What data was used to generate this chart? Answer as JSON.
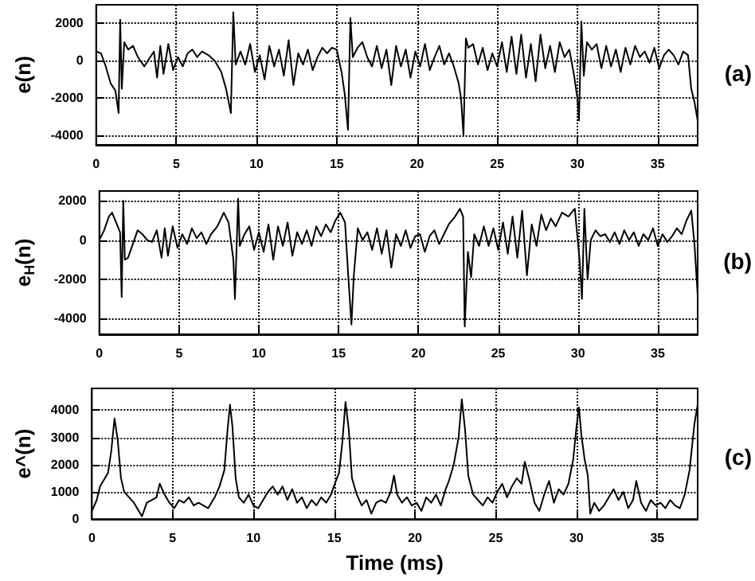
{
  "chart_data": [
    {
      "type": "line",
      "ylabel": "e(n)",
      "annotations": [
        "(a)"
      ],
      "color": "#000000",
      "xlim": [
        0,
        37.5
      ],
      "xticks": [
        0,
        5,
        10,
        15,
        20,
        25,
        30,
        35
      ],
      "ylim": [
        -4500,
        3000
      ],
      "yticks": [
        -4000,
        -2000,
        0,
        2000
      ],
      "grid": true,
      "x": [
        0,
        0.3,
        0.6,
        0.9,
        1.2,
        1.4,
        1.5,
        1.6,
        1.75,
        2.0,
        2.3,
        2.6,
        3.0,
        3.3,
        3.6,
        3.8,
        4.0,
        4.2,
        4.5,
        4.8,
        5.1,
        5.4,
        5.7,
        6.0,
        6.3,
        6.6,
        7.0,
        7.4,
        7.8,
        8.1,
        8.4,
        8.55,
        8.7,
        9.0,
        9.3,
        9.6,
        9.9,
        10.2,
        10.5,
        10.8,
        11.1,
        11.4,
        11.7,
        12.0,
        12.3,
        12.6,
        12.9,
        13.2,
        13.5,
        13.8,
        14.1,
        14.4,
        14.7,
        15.0,
        15.3,
        15.5,
        15.7,
        15.85,
        16.0,
        16.3,
        16.6,
        16.9,
        17.2,
        17.5,
        17.8,
        18.1,
        18.4,
        18.7,
        19.0,
        19.3,
        19.6,
        19.9,
        20.2,
        20.5,
        20.8,
        21.1,
        21.4,
        21.7,
        22.0,
        22.3,
        22.6,
        22.75,
        22.9,
        23.05,
        23.2,
        23.5,
        23.8,
        24.1,
        24.4,
        24.7,
        25.0,
        25.3,
        25.6,
        25.9,
        26.2,
        26.5,
        26.8,
        27.1,
        27.4,
        27.7,
        28.0,
        28.3,
        28.6,
        28.9,
        29.2,
        29.5,
        29.8,
        30.0,
        30.1,
        30.25,
        30.4,
        30.6,
        30.9,
        31.2,
        31.5,
        31.8,
        32.1,
        32.4,
        32.7,
        33.0,
        33.3,
        33.6,
        33.9,
        34.2,
        34.5,
        34.8,
        35.1,
        35.4,
        35.7,
        36.0,
        36.3,
        36.6,
        36.9,
        37.1,
        37.3,
        37.5
      ],
      "values": [
        500,
        400,
        -300,
        -1200,
        -1600,
        -2800,
        2200,
        -1500,
        1000,
        600,
        800,
        200,
        -300,
        100,
        500,
        -900,
        800,
        -700,
        900,
        -500,
        200,
        -300,
        400,
        600,
        200,
        500,
        300,
        0,
        -600,
        -1500,
        -2800,
        2600,
        -200,
        500,
        -200,
        900,
        -600,
        300,
        -1000,
        800,
        -300,
        600,
        -800,
        1100,
        -1300,
        400,
        -200,
        600,
        -500,
        200,
        700,
        400,
        700,
        600,
        -600,
        -1800,
        -3700,
        2300,
        200,
        700,
        1000,
        200,
        -300,
        800,
        -400,
        600,
        -1300,
        800,
        -300,
        600,
        -900,
        500,
        -300,
        900,
        -500,
        200,
        800,
        -200,
        400,
        -300,
        -1200,
        -2000,
        -4000,
        1200,
        700,
        900,
        -200,
        700,
        -500,
        400,
        -300,
        1000,
        -600,
        1300,
        -700,
        1400,
        -900,
        900,
        -1100,
        1400,
        -400,
        800,
        -600,
        1000,
        200,
        600,
        -800,
        -2000,
        -3200,
        2100,
        -800,
        1000,
        600,
        900,
        -400,
        800,
        -300,
        600,
        -600,
        700,
        -200,
        800,
        200,
        500,
        -100,
        700,
        -400,
        300,
        600,
        300,
        -200,
        500,
        300,
        -1500,
        -2200,
        -3200
      ]
    },
    {
      "type": "line",
      "ylabel": "e$_{H}$(n)",
      "annotations": [
        "(b)"
      ],
      "color": "#000000",
      "xlim": [
        0,
        37.5
      ],
      "xticks": [
        0,
        5,
        10,
        15,
        20,
        25,
        30,
        35
      ],
      "ylim": [
        -4800,
        2500
      ],
      "yticks": [
        -4000,
        -2000,
        0,
        2000
      ],
      "grid": true,
      "x": [
        0,
        0.3,
        0.6,
        0.8,
        1.1,
        1.3,
        1.4,
        1.5,
        1.6,
        1.8,
        2.1,
        2.4,
        2.7,
        3.0,
        3.3,
        3.6,
        3.9,
        4.1,
        4.3,
        4.6,
        4.9,
        5.2,
        5.5,
        5.8,
        6.1,
        6.4,
        6.7,
        7.0,
        7.4,
        7.8,
        8.1,
        8.4,
        8.5,
        8.7,
        8.8,
        9.1,
        9.4,
        9.7,
        10.0,
        10.3,
        10.6,
        10.9,
        11.2,
        11.5,
        11.8,
        12.1,
        12.4,
        12.7,
        13.0,
        13.3,
        13.6,
        13.9,
        14.2,
        14.5,
        14.8,
        15.1,
        15.4,
        15.6,
        15.8,
        15.95,
        16.2,
        16.5,
        16.8,
        17.1,
        17.4,
        17.7,
        18.0,
        18.3,
        18.6,
        18.9,
        19.2,
        19.5,
        19.8,
        20.1,
        20.4,
        20.7,
        21.0,
        21.3,
        21.6,
        21.9,
        22.3,
        22.6,
        22.8,
        22.9,
        23.1,
        23.3,
        23.5,
        23.8,
        24.1,
        24.4,
        24.7,
        25.0,
        25.3,
        25.6,
        25.9,
        26.2,
        26.5,
        26.8,
        27.1,
        27.4,
        27.7,
        28.0,
        28.3,
        28.6,
        29.0,
        29.4,
        29.8,
        30.1,
        30.25,
        30.4,
        30.6,
        30.8,
        31.1,
        31.4,
        31.7,
        32.0,
        32.3,
        32.6,
        32.9,
        33.2,
        33.5,
        33.8,
        34.1,
        34.4,
        34.7,
        35.0,
        35.3,
        35.6,
        35.9,
        36.2,
        36.5,
        36.8,
        37.1,
        37.3,
        37.5
      ],
      "values": [
        0,
        500,
        1200,
        1400,
        800,
        400,
        -2900,
        2000,
        -1000,
        -900,
        -200,
        500,
        300,
        0,
        -100,
        500,
        -900,
        600,
        -800,
        700,
        -400,
        300,
        -200,
        600,
        100,
        400,
        -200,
        300,
        700,
        1400,
        900,
        -1000,
        -3000,
        2100,
        -300,
        300,
        700,
        -500,
        400,
        -600,
        800,
        -1000,
        700,
        -300,
        900,
        -800,
        400,
        -200,
        500,
        -300,
        700,
        200,
        800,
        400,
        1000,
        1400,
        900,
        -1800,
        -4300,
        -1800,
        600,
        0,
        400,
        -500,
        600,
        -700,
        500,
        -1400,
        300,
        -300,
        500,
        -400,
        200,
        300,
        -600,
        200,
        500,
        -200,
        300,
        800,
        1200,
        1600,
        1200,
        -4400,
        -600,
        -1900,
        300,
        -300,
        700,
        -300,
        600,
        -500,
        900,
        -700,
        1200,
        -900,
        1500,
        -1800,
        800,
        -300,
        1300,
        500,
        1100,
        700,
        1400,
        1200,
        1600,
        -1000,
        -3000,
        1600,
        -2000,
        0,
        500,
        200,
        300,
        -100,
        400,
        -200,
        500,
        0,
        400,
        -300,
        300,
        0,
        600,
        -300,
        300,
        -100,
        200,
        600,
        300,
        1000,
        1500,
        -200,
        -2800
      ]
    },
    {
      "type": "line",
      "ylabel": "e^(n)",
      "xlabel": "Time (ms)",
      "annotations": [
        "(c)"
      ],
      "color": "#000000",
      "xlim": [
        0,
        37.5
      ],
      "xticks": [
        0,
        5,
        10,
        15,
        20,
        25,
        30,
        35
      ],
      "ylim": [
        0,
        4800
      ],
      "yticks": [
        0,
        1000,
        2000,
        3000,
        4000
      ],
      "grid": true,
      "x": [
        0,
        0.3,
        0.5,
        0.8,
        1.0,
        1.2,
        1.4,
        1.6,
        1.8,
        2.0,
        2.3,
        2.6,
        2.9,
        3.1,
        3.4,
        3.7,
        4.0,
        4.2,
        4.5,
        4.8,
        5.1,
        5.4,
        5.7,
        6.0,
        6.3,
        6.6,
        6.9,
        7.2,
        7.6,
        7.9,
        8.2,
        8.4,
        8.55,
        8.7,
        8.9,
        9.1,
        9.4,
        9.7,
        10.0,
        10.3,
        10.6,
        10.9,
        11.2,
        11.5,
        11.8,
        12.1,
        12.4,
        12.7,
        13.0,
        13.3,
        13.6,
        13.9,
        14.2,
        14.5,
        14.8,
        15.1,
        15.3,
        15.5,
        15.7,
        15.9,
        16.1,
        16.4,
        16.7,
        17.0,
        17.3,
        17.6,
        17.9,
        18.2,
        18.5,
        18.7,
        18.9,
        19.2,
        19.5,
        19.8,
        20.1,
        20.4,
        20.7,
        21.0,
        21.3,
        21.6,
        21.9,
        22.1,
        22.4,
        22.7,
        22.9,
        23.1,
        23.3,
        23.6,
        23.9,
        24.2,
        24.5,
        24.8,
        25.1,
        25.4,
        25.7,
        26.0,
        26.3,
        26.6,
        26.8,
        27.1,
        27.4,
        27.7,
        28.0,
        28.3,
        28.6,
        28.9,
        29.2,
        29.5,
        29.8,
        30.0,
        30.15,
        30.3,
        30.5,
        30.7,
        30.85,
        31.1,
        31.4,
        31.7,
        32.0,
        32.3,
        32.6,
        32.9,
        33.2,
        33.5,
        33.7,
        34.0,
        34.3,
        34.6,
        34.9,
        35.2,
        35.5,
        35.8,
        36.1,
        36.4,
        36.7,
        37.0,
        37.3,
        37.5
      ],
      "values": [
        300,
        700,
        1200,
        1500,
        1700,
        2500,
        3700,
        2900,
        1500,
        1000,
        800,
        600,
        300,
        100,
        600,
        700,
        800,
        1300,
        900,
        600,
        400,
        700,
        600,
        800,
        500,
        600,
        500,
        400,
        800,
        1200,
        1800,
        3300,
        4200,
        3400,
        1500,
        800,
        600,
        900,
        500,
        400,
        700,
        1000,
        1200,
        900,
        1200,
        700,
        1100,
        600,
        800,
        400,
        700,
        500,
        800,
        600,
        900,
        1400,
        1700,
        2800,
        4300,
        3300,
        1500,
        900,
        500,
        700,
        200,
        600,
        700,
        600,
        1000,
        1600,
        900,
        600,
        800,
        500,
        600,
        300,
        800,
        600,
        900,
        500,
        1100,
        1400,
        2000,
        3000,
        4400,
        3300,
        1600,
        900,
        700,
        500,
        800,
        600,
        1000,
        1300,
        800,
        1200,
        1500,
        1300,
        2100,
        1400,
        600,
        300,
        900,
        1400,
        600,
        1100,
        900,
        1300,
        2200,
        3400,
        4100,
        3100,
        2200,
        1600,
        200,
        600,
        300,
        500,
        800,
        1100,
        700,
        1000,
        400,
        700,
        1400,
        600,
        300,
        700,
        500,
        600,
        400,
        700,
        500,
        400,
        900,
        1800,
        3500,
        4200
      ]
    }
  ]
}
